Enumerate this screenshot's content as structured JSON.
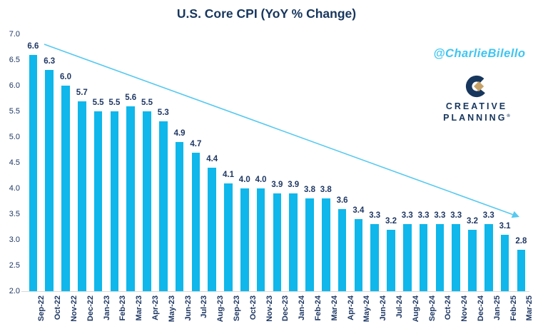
{
  "title": "U.S. Core CPI (YoY % Change)",
  "watermark": "@CharlieBilello",
  "logo": {
    "line1": "CREATIVE",
    "line2": "PLANNING",
    "trademark": "®"
  },
  "colors": {
    "bar": "#0fb7eb",
    "navy_text": "#1f3864",
    "title_navy": "#17365d",
    "watermark": "#3ec5f2",
    "trend_arrow": "#56c9f0",
    "logo_gold": "#c6a268",
    "axis_line": "#d9d9d9"
  },
  "chart_data": {
    "type": "bar",
    "title": "U.S. Core CPI (YoY % Change)",
    "xlabel": "",
    "ylabel": "",
    "ylim": [
      2.0,
      7.0
    ],
    "ytick_step": 0.5,
    "ytick_labels": [
      "2.0",
      "2.5",
      "3.0",
      "3.5",
      "4.0",
      "4.5",
      "5.0",
      "5.5",
      "6.0",
      "6.5",
      "7.0"
    ],
    "grid": false,
    "legend": "none",
    "value_labels_shown": true,
    "annotations": [
      "downward trend arrow from first bar to last bars"
    ],
    "categories": [
      "Sep-22",
      "Oct-22",
      "Nov-22",
      "Dec-22",
      "Jan-23",
      "Feb-23",
      "Mar-23",
      "Apr-23",
      "May-23",
      "Jun-23",
      "Jul-23",
      "Aug-23",
      "Sep-23",
      "Oct-23",
      "Nov-23",
      "Dec-23",
      "Jan-24",
      "Feb-24",
      "Mar-24",
      "Apr-24",
      "May-24",
      "Jun-24",
      "Jul-24",
      "Aug-24",
      "Sep-24",
      "Oct-24",
      "Nov-24",
      "Dec-24",
      "Jan-25",
      "Feb-25",
      "Mar-25"
    ],
    "values": [
      6.6,
      6.3,
      6.0,
      5.7,
      5.5,
      5.5,
      5.6,
      5.5,
      5.3,
      4.9,
      4.7,
      4.4,
      4.1,
      4.0,
      4.0,
      3.9,
      3.9,
      3.8,
      3.8,
      3.6,
      3.4,
      3.3,
      3.2,
      3.3,
      3.3,
      3.3,
      3.3,
      3.2,
      3.3,
      3.1,
      2.8
    ]
  }
}
